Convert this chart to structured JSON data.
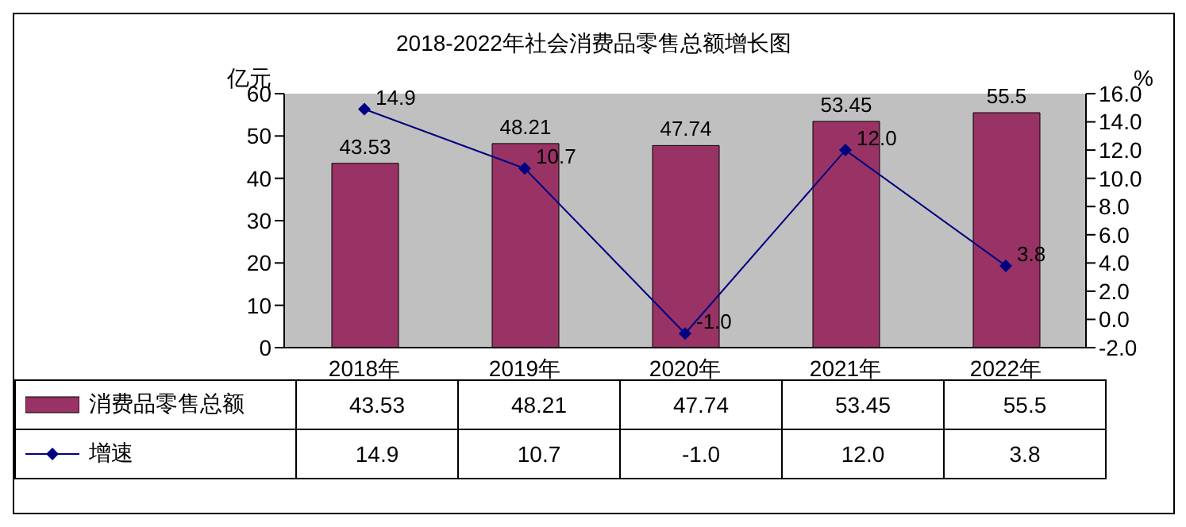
{
  "chart_data": {
    "type": "bar",
    "title": "2018-2022年社会消费品零售总额增长图",
    "ylabel": "亿元",
    "y2label": "%",
    "categories": [
      "2018年",
      "2019年",
      "2020年",
      "2021年",
      "2022年"
    ],
    "series": [
      {
        "name": "消费品零售总额",
        "color": "#993366",
        "values": [
          43.53,
          48.21,
          47.74,
          53.45,
          55.5
        ],
        "value_labels": [
          "43.53",
          "48.21",
          "47.74",
          "53.45",
          "55.5"
        ]
      },
      {
        "name": "增速",
        "type": "line",
        "axis": "y2",
        "color": "#000080",
        "values": [
          14.9,
          10.7,
          -1.0,
          12.0,
          3.8
        ],
        "value_labels": [
          "14.9",
          "10.7",
          "-1.0",
          "12.0",
          "3.8"
        ]
      }
    ],
    "ylim": [
      0,
      60
    ],
    "yticks": [
      0,
      10,
      20,
      30,
      40,
      50,
      60
    ],
    "y2lim": [
      -2,
      16
    ],
    "y2ticks": [
      {
        "value": -2,
        "label": "-2.0"
      },
      {
        "value": 0,
        "label": "0.0"
      },
      {
        "value": 2,
        "label": "2.0"
      },
      {
        "value": 4,
        "label": "4.0"
      },
      {
        "value": 6,
        "label": "6.0"
      },
      {
        "value": 8,
        "label": "8.0"
      },
      {
        "value": 10,
        "label": "10.0"
      },
      {
        "value": 12,
        "label": "12.0"
      },
      {
        "value": 14,
        "label": "14.0"
      },
      {
        "value": 16,
        "label": "16.0"
      }
    ],
    "grid": false,
    "legend": "bottom",
    "marker": "diamond",
    "line_style": "solid"
  }
}
